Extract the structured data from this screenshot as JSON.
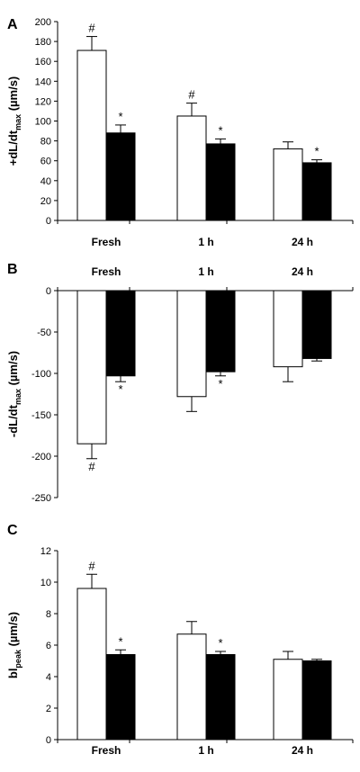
{
  "colors": {
    "bar_open": "#ffffff",
    "bar_filled": "#000000",
    "axis": "#000000"
  },
  "chart_data": [
    {
      "panel": "A",
      "type": "bar",
      "categories": [
        "Fresh",
        "1 h",
        "24 h"
      ],
      "ylabel": {
        "main": "+dL/dt",
        "sub": "max",
        "unit": " (µm/s)"
      },
      "ylim": [
        0,
        200
      ],
      "yticks": [
        0,
        20,
        40,
        60,
        80,
        100,
        120,
        140,
        160,
        180,
        200
      ],
      "series": [
        {
          "fill": "open",
          "values": [
            171,
            105,
            72
          ],
          "errors": [
            14,
            13,
            7
          ],
          "markers": [
            "#",
            "#",
            ""
          ]
        },
        {
          "fill": "filled",
          "values": [
            88,
            77,
            58
          ],
          "errors": [
            8,
            5,
            3
          ],
          "markers": [
            "*",
            "*",
            "*"
          ]
        }
      ],
      "category_labels_position": "bottom",
      "grid": false
    },
    {
      "panel": "B",
      "type": "bar",
      "categories": [
        "Fresh",
        "1 h",
        "24 h"
      ],
      "ylabel": {
        "main": "-dL/dt",
        "sub": "max",
        "unit": " (µm/s)"
      },
      "ylim": [
        -250,
        0
      ],
      "yticks": [
        0,
        -50,
        -100,
        -150,
        -200,
        -250
      ],
      "series": [
        {
          "fill": "open",
          "values": [
            -185,
            -128,
            -92
          ],
          "errors": [
            18,
            18,
            18
          ],
          "markers": [
            "#",
            "",
            ""
          ]
        },
        {
          "fill": "filled",
          "values": [
            -103,
            -98,
            -82
          ],
          "errors": [
            7,
            5,
            3
          ],
          "markers": [
            "*",
            "*",
            ""
          ]
        }
      ],
      "category_labels_position": "top",
      "grid": false
    },
    {
      "panel": "C",
      "type": "bar",
      "categories": [
        "Fresh",
        "1 h",
        "24 h"
      ],
      "ylabel": {
        "main": "bl",
        "sub": "peak",
        "unit": " (µm/s)"
      },
      "ylim": [
        0,
        12
      ],
      "yticks": [
        0,
        2,
        4,
        6,
        8,
        10,
        12
      ],
      "series": [
        {
          "fill": "open",
          "values": [
            9.6,
            6.7,
            5.1
          ],
          "errors": [
            0.9,
            0.8,
            0.5
          ],
          "markers": [
            "#",
            "",
            ""
          ]
        },
        {
          "fill": "filled",
          "values": [
            5.4,
            5.4,
            5.0
          ],
          "errors": [
            0.3,
            0.2,
            0.1
          ],
          "markers": [
            "*",
            "*",
            ""
          ]
        }
      ],
      "category_labels_position": "bottom",
      "grid": false
    }
  ]
}
